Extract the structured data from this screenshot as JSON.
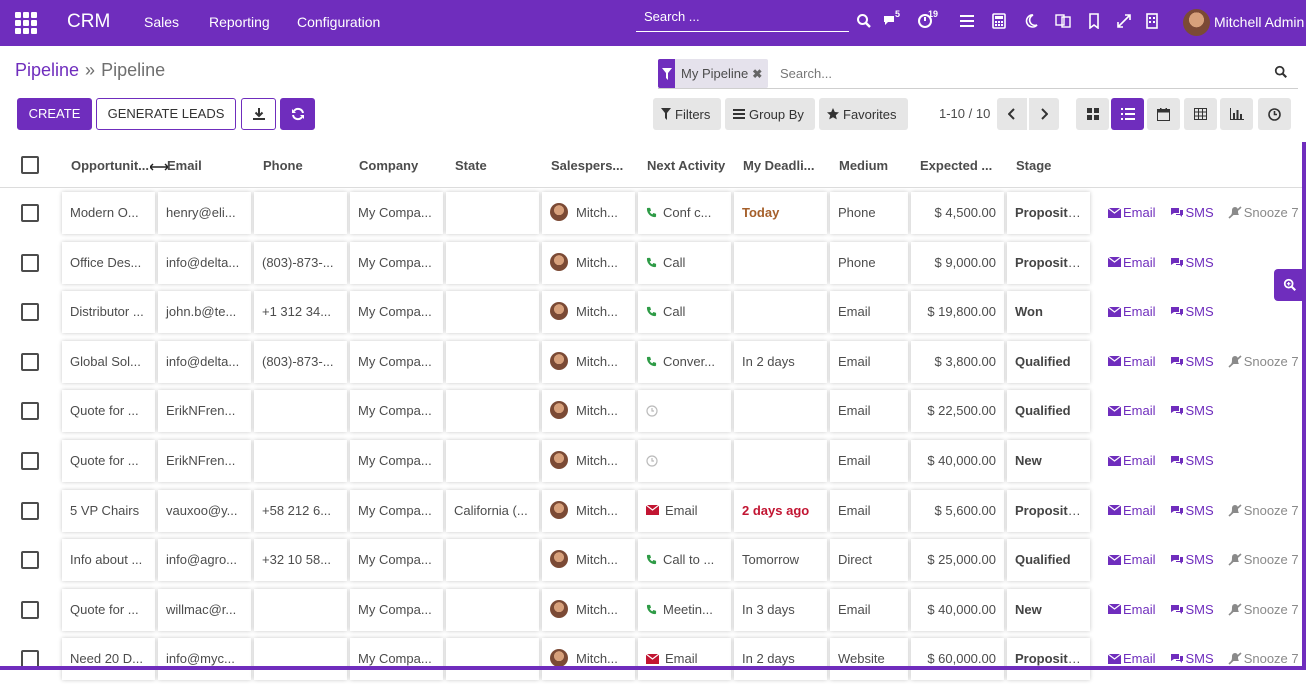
{
  "topbar": {
    "brand": "CRM",
    "menu": [
      "Sales",
      "Reporting",
      "Configuration"
    ],
    "search_label": "Search ...",
    "chat_badge": "5",
    "activity_badge": "19",
    "user_name": "Mitchell Admin"
  },
  "breadcrumb": {
    "parent": "Pipeline",
    "separator": "»",
    "current": "Pipeline"
  },
  "buttons": {
    "create": "CREATE",
    "generate_leads": "GENERATE LEADS"
  },
  "search": {
    "facet": "My Pipeline",
    "placeholder": "Search..."
  },
  "filters": {
    "filters": "Filters",
    "group_by": "Group By",
    "favorites": "Favorites"
  },
  "pager": "1-10 / 10",
  "columns": [
    "Opportunit...",
    "Email",
    "Phone",
    "Company",
    "State",
    "Salespers...",
    "Next Activity",
    "My Deadli...",
    "Medium",
    "Expected ...",
    "Stage"
  ],
  "rows": [
    {
      "opportunity": "Modern O...",
      "email": "henry@eli...",
      "phone": "",
      "company": "My Compa...",
      "state": "",
      "salesperson": "Mitch...",
      "activity": "Conf c...",
      "activity_icon": "phone-icon",
      "deadline": "Today",
      "deadline_class": "dl-today",
      "medium": "Phone",
      "expected": "$ 4,500.00",
      "stage": "Propositi...",
      "email_link": "Email",
      "sms_link": "SMS",
      "snooze": "Snooze 7"
    },
    {
      "opportunity": "Office Des...",
      "email": "info@delta...",
      "phone": "(803)-873-...",
      "company": "My Compa...",
      "state": "",
      "salesperson": "Mitch...",
      "activity": "Call",
      "activity_icon": "phone-icon",
      "deadline": "",
      "deadline_class": "",
      "medium": "Phone",
      "expected": "$ 9,000.00",
      "stage": "Propositi...",
      "email_link": "Email",
      "sms_link": "SMS",
      "snooze": ""
    },
    {
      "opportunity": "Distributor ...",
      "email": "john.b@te...",
      "phone": "+1 312 34...",
      "company": "My Compa...",
      "state": "",
      "salesperson": "Mitch...",
      "activity": "Call",
      "activity_icon": "phone-icon",
      "deadline": "",
      "deadline_class": "",
      "medium": "Email",
      "expected": "$ 19,800.00",
      "stage": "Won",
      "email_link": "Email",
      "sms_link": "SMS",
      "snooze": ""
    },
    {
      "opportunity": "Global Sol...",
      "email": "info@delta...",
      "phone": "(803)-873-...",
      "company": "My Compa...",
      "state": "",
      "salesperson": "Mitch...",
      "activity": "Conver...",
      "activity_icon": "phone-icon",
      "deadline": "In 2 days",
      "deadline_class": "",
      "medium": "Email",
      "expected": "$ 3,800.00",
      "stage": "Qualified",
      "email_link": "Email",
      "sms_link": "SMS",
      "snooze": "Snooze 7"
    },
    {
      "opportunity": "Quote for ...",
      "email": "ErikNFren...",
      "phone": "",
      "company": "My Compa...",
      "state": "",
      "salesperson": "Mitch...",
      "activity": "",
      "activity_icon": "clock-icon",
      "deadline": "",
      "deadline_class": "",
      "medium": "Email",
      "expected": "$ 22,500.00",
      "stage": "Qualified",
      "email_link": "Email",
      "sms_link": "SMS",
      "snooze": ""
    },
    {
      "opportunity": "Quote for ...",
      "email": "ErikNFren...",
      "phone": "",
      "company": "My Compa...",
      "state": "",
      "salesperson": "Mitch...",
      "activity": "",
      "activity_icon": "clock-icon",
      "deadline": "",
      "deadline_class": "",
      "medium": "Email",
      "expected": "$ 40,000.00",
      "stage": "New",
      "email_link": "Email",
      "sms_link": "SMS",
      "snooze": ""
    },
    {
      "opportunity": "5 VP Chairs",
      "email": "vauxoo@y...",
      "phone": "+58 212 6...",
      "company": "My Compa...",
      "state": "California (...",
      "salesperson": "Mitch...",
      "activity": "Email",
      "activity_icon": "envelope-icon",
      "deadline": "2 days ago",
      "deadline_class": "dl-overdue",
      "medium": "Email",
      "expected": "$ 5,600.00",
      "stage": "Propositi...",
      "email_link": "Email",
      "sms_link": "SMS",
      "snooze": "Snooze 7"
    },
    {
      "opportunity": "Info about ...",
      "email": "info@agro...",
      "phone": "+32 10 58...",
      "company": "My Compa...",
      "state": "",
      "salesperson": "Mitch...",
      "activity": "Call to ...",
      "activity_icon": "phone-icon",
      "deadline": "Tomorrow",
      "deadline_class": "",
      "medium": "Direct",
      "expected": "$ 25,000.00",
      "stage": "Qualified",
      "email_link": "Email",
      "sms_link": "SMS",
      "snooze": "Snooze 7"
    },
    {
      "opportunity": "Quote for ...",
      "email": "willmac@r...",
      "phone": "",
      "company": "My Compa...",
      "state": "",
      "salesperson": "Mitch...",
      "activity": "Meetin...",
      "activity_icon": "phone-icon",
      "deadline": "In 3 days",
      "deadline_class": "",
      "medium": "Email",
      "expected": "$ 40,000.00",
      "stage": "New",
      "email_link": "Email",
      "sms_link": "SMS",
      "snooze": "Snooze 7"
    },
    {
      "opportunity": "Need 20 D...",
      "email": "info@myc...",
      "phone": "",
      "company": "My Compa...",
      "state": "",
      "salesperson": "Mitch...",
      "activity": "Email",
      "activity_icon": "envelope-icon",
      "deadline": "In 2 days",
      "deadline_class": "",
      "medium": "Website",
      "expected": "$ 60,000.00",
      "stage": "Propositi...",
      "email_link": "Email",
      "sms_link": "SMS",
      "snooze": "Snooze 7"
    }
  ],
  "colors": {
    "primary": "#6f2dbd",
    "today": "#a55f2a",
    "overdue": "#c21532",
    "phone_icon": "#28a745"
  }
}
